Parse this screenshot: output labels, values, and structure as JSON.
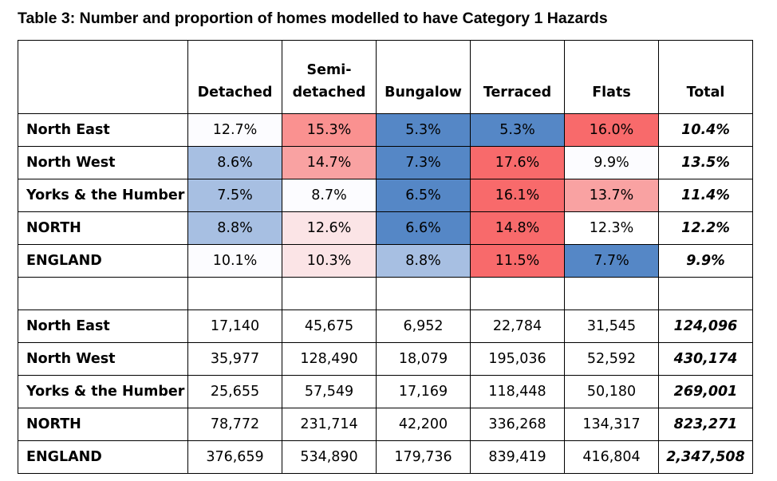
{
  "title": "Table 3: Number and proportion of homes modelled to have Category 1 Hazards",
  "headers": [
    "",
    "Detached",
    "Semi-detached",
    "Bungalow",
    "Terraced",
    "Flats",
    "Total"
  ],
  "header_semi_line1": "Semi-",
  "header_semi_line2": "detached",
  "colors": {
    "strong_blue": "#5587c6",
    "light_blue": "#a7bfe2",
    "strong_red": "#f86a6b",
    "mid_red": "#fa9190",
    "light_red": "#f9a2a2",
    "pale_pink": "#fbe4e6"
  },
  "percent_rows": [
    {
      "region": "North East",
      "values": [
        "12.7%",
        "15.3%",
        "5.3%",
        "5.3%",
        "16.0%"
      ],
      "total": "10.4%"
    },
    {
      "region": "North West",
      "values": [
        "8.6%",
        "14.7%",
        "7.3%",
        "17.6%",
        "9.9%"
      ],
      "total": "13.5%"
    },
    {
      "region": "Yorks & the Humber",
      "values": [
        "7.5%",
        "8.7%",
        "6.5%",
        "16.1%",
        "13.7%"
      ],
      "total": "11.4%"
    },
    {
      "region": "NORTH",
      "values": [
        "8.8%",
        "12.6%",
        "6.6%",
        "14.8%",
        "12.3%"
      ],
      "total": "12.2%"
    },
    {
      "region": "ENGLAND",
      "values": [
        "10.1%",
        "10.3%",
        "8.8%",
        "11.5%",
        "7.7%"
      ],
      "total": "9.9%"
    }
  ],
  "count_rows": [
    {
      "region": "North East",
      "values": [
        "17,140",
        "45,675",
        "6,952",
        "22,784",
        "31,545"
      ],
      "total": "124,096"
    },
    {
      "region": "North West",
      "values": [
        "35,977",
        "128,490",
        "18,079",
        "195,036",
        "52,592"
      ],
      "total": "430,174"
    },
    {
      "region": "Yorks & the Humber",
      "values": [
        "25,655",
        "57,549",
        "17,169",
        "118,448",
        "50,180"
      ],
      "total": "269,001"
    },
    {
      "region": "NORTH",
      "values": [
        "78,772",
        "231,714",
        "42,200",
        "336,268",
        "134,317"
      ],
      "total": "823,271"
    },
    {
      "region": "ENGLAND",
      "values": [
        "376,659",
        "534,890",
        "179,736",
        "839,419",
        "416,804"
      ],
      "total": "2,347,508"
    }
  ]
}
